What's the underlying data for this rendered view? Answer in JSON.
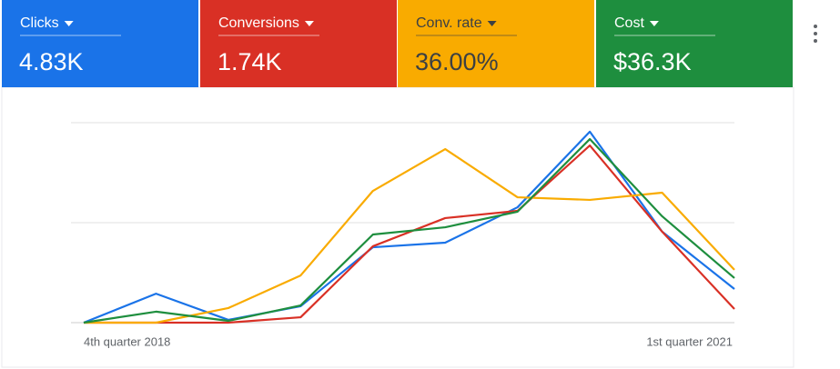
{
  "chart_data": {
    "type": "line",
    "categories": [
      "4th quarter 2018",
      null,
      null,
      null,
      null,
      null,
      null,
      null,
      null,
      "1st quarter 2021"
    ],
    "series": [
      {
        "name": "Clicks",
        "total": "4.83K",
        "color": "#1a73e8",
        "values": [
          0,
          14.5,
          1.4,
          8.2,
          37.7,
          40,
          57.7,
          95.5,
          45.5,
          16.8
        ]
      },
      {
        "name": "Conversions",
        "total": "1.74K",
        "color": "#d93025",
        "values": [
          0,
          0,
          0,
          2.7,
          38.2,
          52.3,
          55.9,
          88.6,
          45.5,
          6.8
        ]
      },
      {
        "name": "Conv. rate",
        "total": "36.00%",
        "color": "#f9ab00",
        "values": [
          0,
          0,
          7.3,
          23.6,
          65.9,
          86.8,
          62.7,
          61.4,
          65,
          26.4
        ]
      },
      {
        "name": "Cost",
        "total": "$36.3K",
        "color": "#1e8e3e",
        "values": [
          0,
          5.5,
          0.9,
          8.6,
          44.1,
          47.7,
          55.5,
          91.8,
          53.2,
          22.3
        ]
      }
    ],
    "ylim": [
      0,
      100
    ],
    "gridlines": [
      0,
      50,
      100
    ]
  }
}
